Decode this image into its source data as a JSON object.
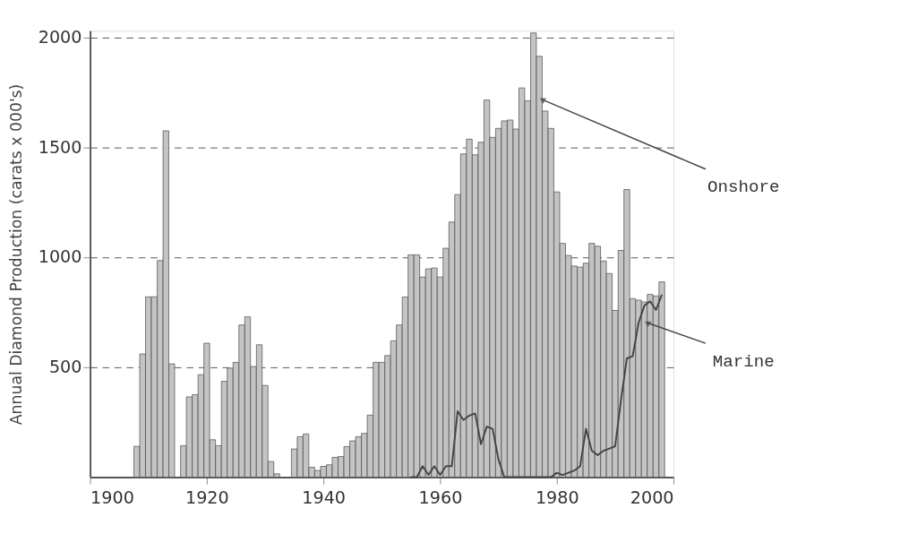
{
  "chart_data": {
    "type": "bar",
    "ylabel": "Annual Diamond Production (carats x 000's)",
    "x": [
      1908,
      1909,
      1910,
      1911,
      1912,
      1913,
      1914,
      1915,
      1916,
      1917,
      1918,
      1919,
      1920,
      1921,
      1922,
      1923,
      1924,
      1925,
      1926,
      1927,
      1928,
      1929,
      1930,
      1931,
      1932,
      1933,
      1934,
      1935,
      1936,
      1937,
      1938,
      1939,
      1940,
      1941,
      1942,
      1943,
      1944,
      1945,
      1946,
      1947,
      1948,
      1949,
      1950,
      1951,
      1952,
      1953,
      1954,
      1955,
      1956,
      1957,
      1958,
      1959,
      1960,
      1961,
      1962,
      1963,
      1964,
      1965,
      1966,
      1967,
      1968,
      1969,
      1970,
      1971,
      1972,
      1973,
      1974,
      1975,
      1976,
      1977,
      1978,
      1979,
      1980,
      1981,
      1982,
      1983,
      1984,
      1985,
      1986,
      1987,
      1988,
      1989,
      1990,
      1991,
      1992,
      1993,
      1994,
      1995,
      1996,
      1997,
      1998
    ],
    "series": [
      {
        "name": "Onshore",
        "color": "#c4c4c4",
        "values": [
          140,
          560,
          820,
          820,
          985,
          1575,
          515,
          null,
          143,
          365,
          375,
          466,
          609,
          170,
          143,
          436,
          496,
          522,
          692,
          729,
          503,
          602,
          417,
          71,
          15,
          null,
          null,
          128,
          184,
          196,
          45,
          30,
          49,
          56,
          90,
          94,
          139,
          165,
          184,
          199,
          282,
          522,
          522,
          553,
          620,
          692,
          819,
          1011,
          1011,
          910,
          947,
          951,
          910,
          1041,
          1160,
          1285,
          1470,
          1537,
          1466,
          1523,
          1715,
          1545,
          1586,
          1620,
          1624,
          1583,
          1770,
          1711,
          2020,
          1914,
          1665,
          1586,
          1297,
          1063,
          1008,
          960,
          955,
          973,
          1063,
          1050,
          983,
          926,
          758,
          1031,
          1308,
          812,
          805,
          797,
          831,
          824,
          888
        ]
      },
      {
        "name": "Marine",
        "type": "line",
        "color": "#444444",
        "x": [
          1955,
          1956,
          1957,
          1958,
          1959,
          1960,
          1961,
          1962,
          1963,
          1964,
          1965,
          1966,
          1967,
          1968,
          1969,
          1970,
          1971,
          1972,
          1979,
          1980,
          1981,
          1982,
          1983,
          1984,
          1985,
          1986,
          1987,
          1988,
          1989,
          1990,
          1991,
          1992,
          1993,
          1994,
          1995,
          1996,
          1997,
          1998
        ],
        "values": [
          0,
          0,
          50,
          10,
          50,
          10,
          50,
          50,
          300,
          260,
          280,
          290,
          150,
          230,
          220,
          80,
          0,
          0,
          0,
          20,
          10,
          20,
          30,
          50,
          220,
          120,
          100,
          120,
          130,
          140,
          350,
          540,
          550,
          700,
          780,
          800,
          760,
          830
        ]
      }
    ],
    "xlim": [
      1900,
      2000
    ],
    "xticks": [
      1900,
      1920,
      1940,
      1960,
      1980,
      2000
    ],
    "ylim": [
      0,
      2030
    ],
    "yticks": [
      500,
      1000,
      1500,
      2000
    ],
    "grid": "y",
    "line_style": "solid"
  }
}
